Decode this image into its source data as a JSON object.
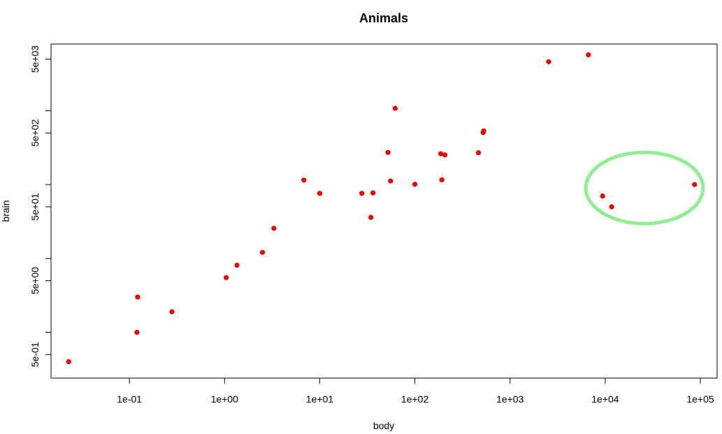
{
  "chart_data": {
    "type": "scatter",
    "title": "Animals",
    "xlabel": "body",
    "ylabel": "brain",
    "x_scale": "log",
    "y_scale": "log",
    "xlim": [
      0.015,
      150000
    ],
    "ylim": [
      0.24,
      8000
    ],
    "x_ticks": [
      {
        "value": 0.1,
        "label": "1e-01"
      },
      {
        "value": 1,
        "label": "1e+00"
      },
      {
        "value": 10,
        "label": "1e+01"
      },
      {
        "value": 100,
        "label": "1e+02"
      },
      {
        "value": 1000,
        "label": "1e+03"
      },
      {
        "value": 10000,
        "label": "1e+04"
      },
      {
        "value": 100000,
        "label": "1e+05"
      }
    ],
    "y_ticks": [
      {
        "value": 0.5,
        "label": "5e-01"
      },
      {
        "value": 5,
        "label": "5e+00"
      },
      {
        "value": 50,
        "label": "5e+01"
      },
      {
        "value": 500,
        "label": "5e+02"
      },
      {
        "value": 5000,
        "label": "5e+03"
      }
    ],
    "y_minor_ticks": [
      1,
      10,
      100,
      1000
    ],
    "grid": false,
    "point_color": "#ff0000",
    "points": [
      {
        "x": 0.023,
        "y": 0.4
      },
      {
        "x": 0.12,
        "y": 1.0
      },
      {
        "x": 0.122,
        "y": 3.0
      },
      {
        "x": 0.28,
        "y": 1.9
      },
      {
        "x": 1.04,
        "y": 5.5
      },
      {
        "x": 1.35,
        "y": 8.1
      },
      {
        "x": 2.5,
        "y": 12.1
      },
      {
        "x": 3.3,
        "y": 25.6
      },
      {
        "x": 6.8,
        "y": 115
      },
      {
        "x": 10,
        "y": 76
      },
      {
        "x": 27.7,
        "y": 76
      },
      {
        "x": 34.5,
        "y": 36
      },
      {
        "x": 36.3,
        "y": 77
      },
      {
        "x": 52.2,
        "y": 272
      },
      {
        "x": 55.5,
        "y": 112
      },
      {
        "x": 62,
        "y": 1080
      },
      {
        "x": 100,
        "y": 101
      },
      {
        "x": 187,
        "y": 262
      },
      {
        "x": 192,
        "y": 116
      },
      {
        "x": 207,
        "y": 252
      },
      {
        "x": 465,
        "y": 270
      },
      {
        "x": 521,
        "y": 506
      },
      {
        "x": 529,
        "y": 533
      },
      {
        "x": 2547,
        "y": 4603
      },
      {
        "x": 6654,
        "y": 5711
      },
      {
        "x": 9400,
        "y": 70
      },
      {
        "x": 11700,
        "y": 50
      },
      {
        "x": 87000,
        "y": 100
      }
    ],
    "annotation": {
      "shape": "ellipse",
      "color": "#90ee90",
      "encloses": "points with body > 9000 and brain < 150"
    }
  }
}
